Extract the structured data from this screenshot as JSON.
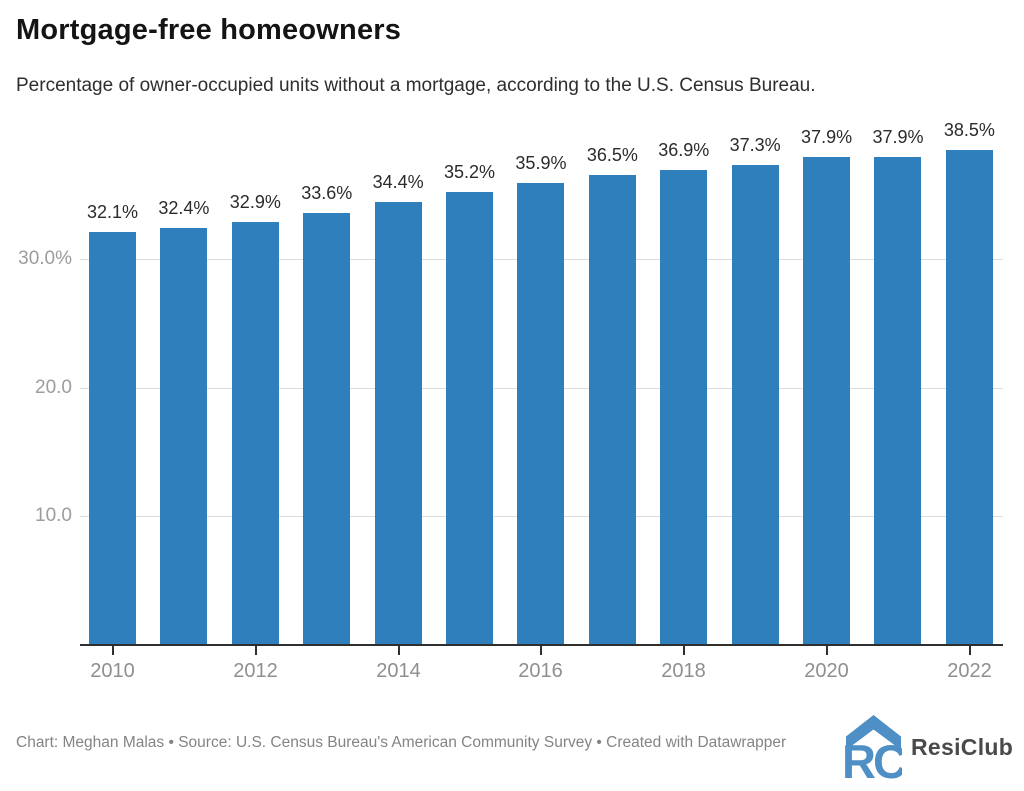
{
  "header": {
    "title": "Mortgage-free homeowners",
    "subtitle": "Percentage of owner-occupied units without a mortgage, according to the U.S. Census Bureau."
  },
  "chart_data": {
    "type": "bar",
    "title": "Mortgage-free homeowners",
    "subtitle": "Percentage of owner-occupied units without a mortgage, according to the U.S. Census Bureau.",
    "categories": [
      "2010",
      "2011",
      "2012",
      "2013",
      "2014",
      "2015",
      "2016",
      "2017",
      "2018",
      "2019",
      "2020",
      "2021",
      "2022"
    ],
    "values": [
      32.1,
      32.4,
      32.9,
      33.6,
      34.4,
      35.2,
      35.9,
      36.5,
      36.9,
      37.3,
      37.9,
      37.9,
      38.5
    ],
    "bar_labels": [
      "32.1%",
      "32.4%",
      "32.9%",
      "33.6%",
      "34.4%",
      "35.2%",
      "35.9%",
      "36.5%",
      "36.9%",
      "37.3%",
      "37.9%",
      "37.9%",
      "38.5%"
    ],
    "x_tick_labels": [
      "2010",
      "2012",
      "2014",
      "2016",
      "2018",
      "2020",
      "2022"
    ],
    "y_ticks": [
      {
        "value": 10,
        "label": "10.0"
      },
      {
        "value": 20,
        "label": "20.0"
      },
      {
        "value": 30,
        "label": "30.0%"
      }
    ],
    "ylim": [
      0,
      41.2
    ],
    "xlabel": "",
    "ylabel": "",
    "grid": "horizontal",
    "legend": "none",
    "bar_color": "#2f7fbc",
    "label_color": "#2b2b2b",
    "axis_text_color": "#8f8f8f"
  },
  "footer": {
    "credit": "Chart: Meghan Malas • Source: U.S. Census Bureau's American Community Survey • Created with Datawrapper",
    "logo_text": "ResiClub",
    "logo_color": "#4e8fc5"
  }
}
